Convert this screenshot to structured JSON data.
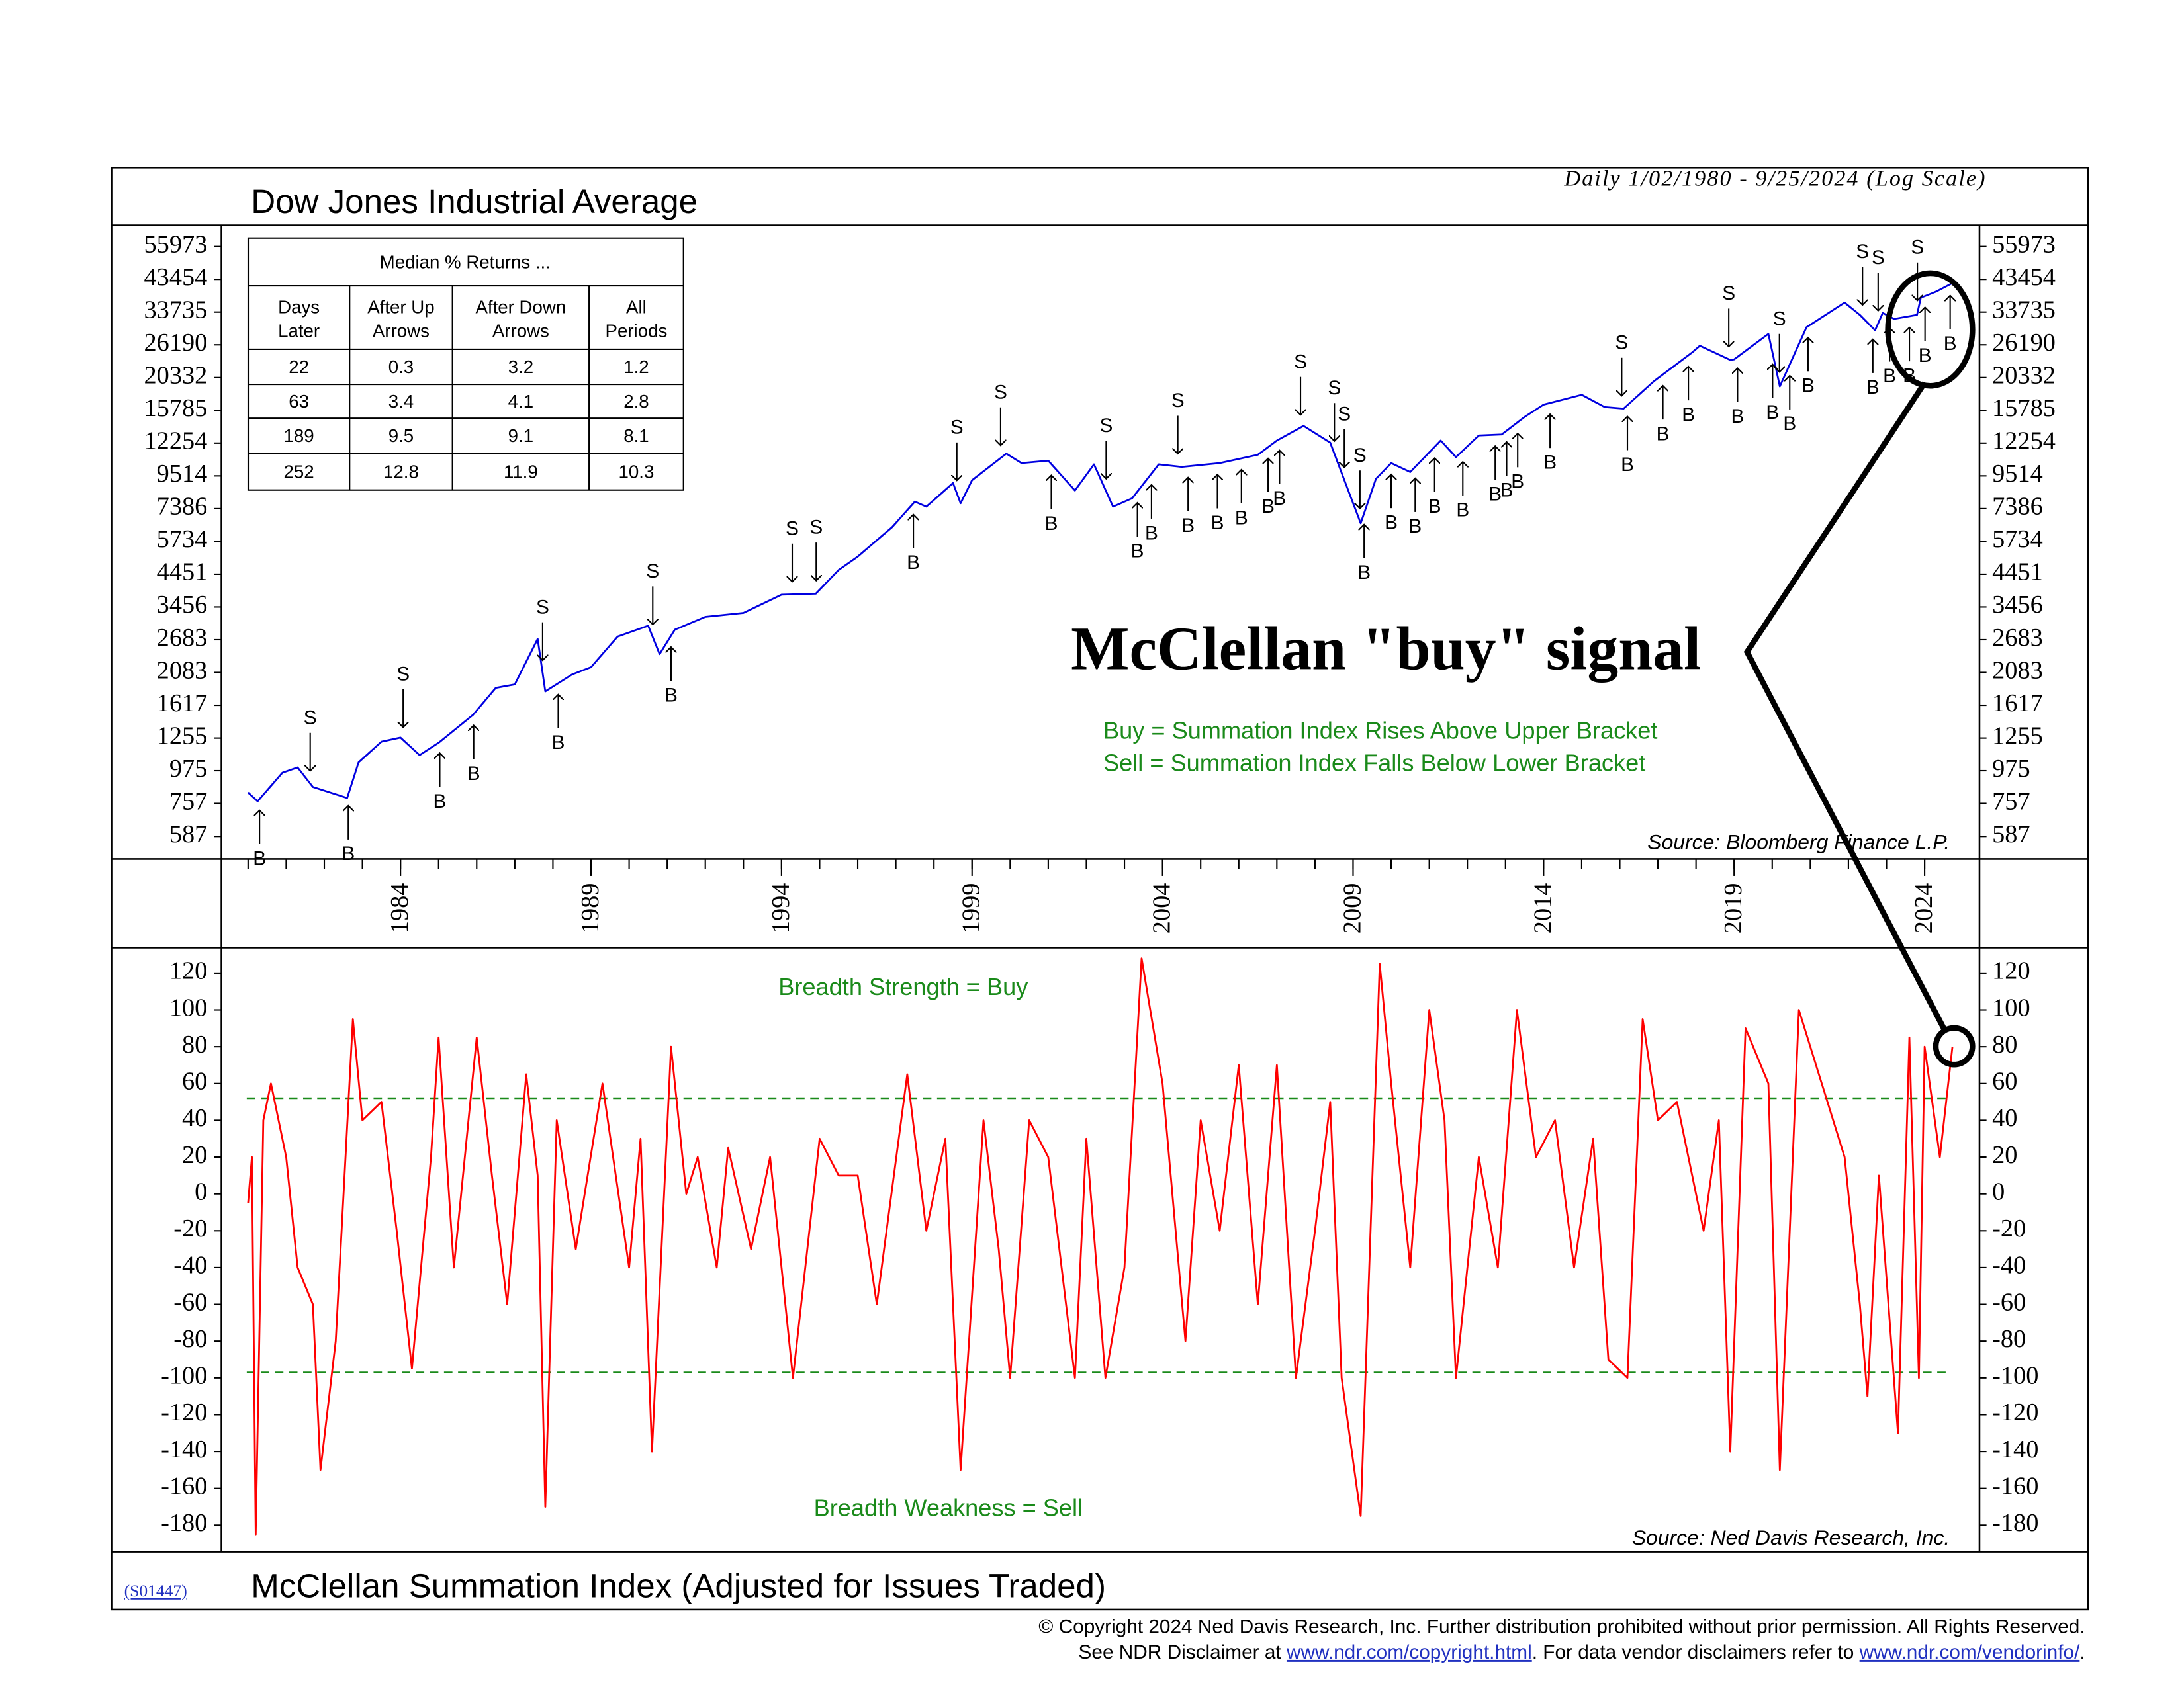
{
  "chart_data": [
    {
      "type": "line",
      "title": "Dow Jones Industrial Average",
      "subtitle": "Daily 1/02/1980 - 9/25/2024 (Log Scale)",
      "log_scale": true,
      "color": "#0000e0",
      "x": [
        1980.0,
        1980.25,
        1980.9,
        1981.3,
        1981.7,
        1982.6,
        1982.9,
        1983.5,
        1984.0,
        1984.5,
        1985.0,
        1985.9,
        1986.5,
        1987.0,
        1987.6,
        1987.8,
        1988.5,
        1989.0,
        1989.7,
        1990.5,
        1990.8,
        1991.2,
        1992.0,
        1993.0,
        1994.0,
        1994.9,
        1995.5,
        1996.0,
        1996.9,
        1997.5,
        1997.8,
        1998.5,
        1998.7,
        1999.0,
        1999.9,
        2000.3,
        2001.0,
        2001.7,
        2002.2,
        2002.7,
        2003.2,
        2003.9,
        2004.5,
        2005.5,
        2006.5,
        2007.0,
        2007.7,
        2008.4,
        2008.8,
        2009.2,
        2009.6,
        2010.0,
        2010.5,
        2011.3,
        2011.7,
        2012.3,
        2012.9,
        2013.5,
        2014.0,
        2015.0,
        2015.6,
        2016.1,
        2016.9,
        2017.9,
        2018.1,
        2018.9,
        2019.0,
        2019.9,
        2020.2,
        2020.9,
        2021.9,
        2022.3,
        2022.7,
        2022.9,
        2023.2,
        2023.8,
        2023.9,
        2024.3,
        2024.73
      ],
      "values": [
        824,
        770,
        960,
        1000,
        860,
        790,
        1040,
        1220,
        1260,
        1100,
        1210,
        1500,
        1850,
        1900,
        2700,
        1800,
        2050,
        2170,
        2750,
        2990,
        2400,
        2900,
        3200,
        3300,
        3800,
        3830,
        4600,
        5100,
        6400,
        7800,
        7500,
        9000,
        7700,
        9200,
        11300,
        10500,
        10700,
        8500,
        10400,
        7500,
        8000,
        10400,
        10200,
        10500,
        11200,
        12500,
        14000,
        12300,
        9000,
        6600,
        9300,
        10500,
        9800,
        12500,
        11000,
        13000,
        13100,
        15000,
        16500,
        17800,
        16200,
        16000,
        19800,
        24700,
        26000,
        23300,
        23400,
        28500,
        19000,
        30000,
        36300,
        33000,
        29300,
        33500,
        32000,
        33000,
        37700,
        39500,
        42200
      ],
      "xlim": [
        1979.3,
        2025.44
      ],
      "xticks": [
        1984,
        1989,
        1994,
        1999,
        2004,
        2009,
        2014,
        2019,
        2024
      ],
      "xminorticks": [
        1980,
        1981,
        1982,
        1983,
        1984,
        1985,
        1986,
        1987,
        1988,
        1989,
        1990,
        1991,
        1992,
        1993,
        1994,
        1995,
        1996,
        1997,
        1998,
        1999,
        2000,
        2001,
        2002,
        2003,
        2004,
        2005,
        2006,
        2007,
        2008,
        2009,
        2010,
        2011,
        2012,
        2013,
        2014,
        2015,
        2016,
        2017,
        2018,
        2019,
        2020,
        2021,
        2022,
        2023,
        2024
      ],
      "ylim": [
        493,
        65950
      ],
      "yticks": [
        55973,
        43454,
        33735,
        26190,
        20332,
        15785,
        12254,
        9514,
        7386,
        5734,
        4451,
        3456,
        2683,
        2083,
        1617,
        1255,
        975,
        757,
        587
      ],
      "signals": [
        {
          "x": 1980.3,
          "label": "B"
        },
        {
          "x": 1982.63,
          "label": "B"
        },
        {
          "x": 1985.03,
          "label": "B"
        },
        {
          "x": 1985.92,
          "label": "B"
        },
        {
          "x": 1988.14,
          "label": "B"
        },
        {
          "x": 1991.1,
          "label": "B"
        },
        {
          "x": 1997.46,
          "label": "B"
        },
        {
          "x": 2001.08,
          "label": "B"
        },
        {
          "x": 2003.34,
          "label": "B"
        },
        {
          "x": 2003.71,
          "label": "B"
        },
        {
          "x": 2004.67,
          "label": "B"
        },
        {
          "x": 2005.44,
          "label": "B"
        },
        {
          "x": 2006.07,
          "label": "B"
        },
        {
          "x": 2006.77,
          "label": "B"
        },
        {
          "x": 2007.07,
          "label": "B"
        },
        {
          "x": 2009.29,
          "label": "B"
        },
        {
          "x": 2010.0,
          "label": "B"
        },
        {
          "x": 2010.63,
          "label": "B"
        },
        {
          "x": 2011.14,
          "label": "B"
        },
        {
          "x": 2011.88,
          "label": "B"
        },
        {
          "x": 2012.73,
          "label": "B"
        },
        {
          "x": 2013.03,
          "label": "B"
        },
        {
          "x": 2013.32,
          "label": "B"
        },
        {
          "x": 2014.17,
          "label": "B"
        },
        {
          "x": 2016.2,
          "label": "B"
        },
        {
          "x": 2017.13,
          "label": "B"
        },
        {
          "x": 2017.8,
          "label": "B"
        },
        {
          "x": 2019.09,
          "label": "B"
        },
        {
          "x": 2020.01,
          "label": "B"
        },
        {
          "x": 2020.46,
          "label": "B"
        },
        {
          "x": 2020.94,
          "label": "B"
        },
        {
          "x": 2022.64,
          "label": "B"
        },
        {
          "x": 2023.08,
          "label": "B"
        },
        {
          "x": 2023.6,
          "label": "B"
        },
        {
          "x": 2024.01,
          "label": "B"
        },
        {
          "x": 2024.67,
          "label": "B"
        },
        {
          "x": 1981.63,
          "label": "S"
        },
        {
          "x": 1984.07,
          "label": "S"
        },
        {
          "x": 1987.73,
          "label": "S"
        },
        {
          "x": 1990.62,
          "label": "S"
        },
        {
          "x": 1994.28,
          "label": "S"
        },
        {
          "x": 1994.91,
          "label": "S"
        },
        {
          "x": 1998.6,
          "label": "S"
        },
        {
          "x": 1999.75,
          "label": "S"
        },
        {
          "x": 2002.52,
          "label": "S"
        },
        {
          "x": 2004.4,
          "label": "S"
        },
        {
          "x": 2007.62,
          "label": "S"
        },
        {
          "x": 2008.51,
          "label": "S"
        },
        {
          "x": 2008.77,
          "label": "S"
        },
        {
          "x": 2009.18,
          "label": "S"
        },
        {
          "x": 2016.05,
          "label": "S"
        },
        {
          "x": 2018.86,
          "label": "S"
        },
        {
          "x": 2020.19,
          "label": "S"
        },
        {
          "x": 2022.37,
          "label": "S"
        },
        {
          "x": 2022.78,
          "label": "S"
        },
        {
          "x": 2023.81,
          "label": "S"
        }
      ],
      "callout": "McClellan \"buy\" signal",
      "buy_rule": "Buy = Summation Index Rises Above Upper Bracket",
      "sell_rule": "Sell = Summation Index Falls Below Lower Bracket",
      "source": "Source: Bloomberg Finance L.P."
    },
    {
      "type": "line",
      "title": "McClellan Summation Index (Adjusted for Issues Traded)",
      "color": "#ff0000",
      "x": [
        1980.0,
        1980.1,
        1980.2,
        1980.4,
        1980.6,
        1981.0,
        1981.3,
        1981.7,
        1981.9,
        1982.3,
        1982.75,
        1983.0,
        1983.5,
        1983.9,
        1984.3,
        1984.8,
        1985.0,
        1985.4,
        1986.0,
        1986.4,
        1986.8,
        1987.3,
        1987.6,
        1987.8,
        1988.1,
        1988.6,
        1989.3,
        1990.0,
        1990.3,
        1990.6,
        1991.1,
        1991.5,
        1991.8,
        1992.3,
        1992.6,
        1993.2,
        1993.7,
        1994.3,
        1995.0,
        1995.5,
        1996.0,
        1996.5,
        1997.3,
        1997.8,
        1998.3,
        1998.7,
        1999.3,
        1999.7,
        2000.0,
        2000.5,
        2001.0,
        2001.7,
        2002.0,
        2002.5,
        2003.0,
        2003.45,
        2004.0,
        2004.6,
        2005.0,
        2005.5,
        2006.0,
        2006.5,
        2007.0,
        2007.5,
        2008.0,
        2008.4,
        2008.7,
        2009.2,
        2009.7,
        2010.0,
        2010.5,
        2011.0,
        2011.4,
        2011.7,
        2012.3,
        2012.8,
        2013.3,
        2013.8,
        2014.3,
        2014.8,
        2015.3,
        2015.7,
        2016.2,
        2016.6,
        2017.0,
        2017.5,
        2018.2,
        2018.6,
        2018.9,
        2019.3,
        2019.9,
        2020.2,
        2020.7,
        2021.3,
        2021.9,
        2022.3,
        2022.5,
        2022.8,
        2023.3,
        2023.6,
        2023.85,
        2024.0,
        2024.4,
        2024.73
      ],
      "values": [
        -5,
        20,
        -185,
        40,
        60,
        20,
        -40,
        -60,
        -150,
        -80,
        95,
        40,
        50,
        -20,
        -95,
        20,
        85,
        -40,
        85,
        10,
        -60,
        65,
        10,
        -170,
        40,
        -30,
        60,
        -40,
        30,
        -140,
        80,
        0,
        20,
        -40,
        25,
        -30,
        20,
        -100,
        30,
        10,
        10,
        -60,
        65,
        -20,
        30,
        -150,
        40,
        -30,
        -100,
        40,
        20,
        -100,
        30,
        -100,
        -40,
        128,
        60,
        -80,
        40,
        -20,
        70,
        -60,
        70,
        -100,
        -20,
        50,
        -100,
        -175,
        125,
        60,
        -40,
        100,
        40,
        -100,
        20,
        -40,
        100,
        20,
        40,
        -40,
        30,
        -90,
        -100,
        95,
        40,
        50,
        -20,
        40,
        -140,
        90,
        60,
        -150,
        100,
        60,
        20,
        -60,
        -110,
        10,
        -130,
        85,
        -100,
        80,
        20,
        80
      ],
      "xlim": [
        1979.3,
        2025.44
      ],
      "ylim": [
        -194.5,
        133.8
      ],
      "yticks": [
        120,
        100,
        80,
        60,
        40,
        20,
        0,
        -20,
        -40,
        -60,
        -80,
        -100,
        -120,
        -140,
        -160,
        -180
      ],
      "brackets": [
        52,
        -97
      ],
      "bracket_color": "#1a8a1a",
      "upper_note": "Breadth Strength = Buy",
      "lower_note": "Breadth Weakness = Sell",
      "source": "Source: Ned Davis Research, Inc."
    }
  ],
  "table": {
    "title": "Median % Returns ...",
    "headers": [
      [
        "Days",
        "Later"
      ],
      [
        "After Up",
        "Arrows"
      ],
      [
        "After Down",
        "Arrows"
      ],
      [
        "All",
        "Periods"
      ]
    ],
    "rows": [
      [
        22,
        0.3,
        3.2,
        1.2
      ],
      [
        63,
        3.4,
        4.1,
        2.8
      ],
      [
        189,
        9.5,
        9.1,
        8.1
      ],
      [
        252,
        12.8,
        11.9,
        10.3
      ]
    ]
  },
  "footer": {
    "chart_code": "(S01447)",
    "copyright": "© Copyright 2024 Ned Davis Research, Inc.  Further distribution prohibited without prior permission.  All Rights Reserved.",
    "disclaimer": [
      "See NDR Disclaimer at ",
      "www.ndr.com/copyright.html",
      ". For data vendor disclaimers refer to ",
      "www.ndr.com/vendorinfo/",
      "."
    ]
  }
}
